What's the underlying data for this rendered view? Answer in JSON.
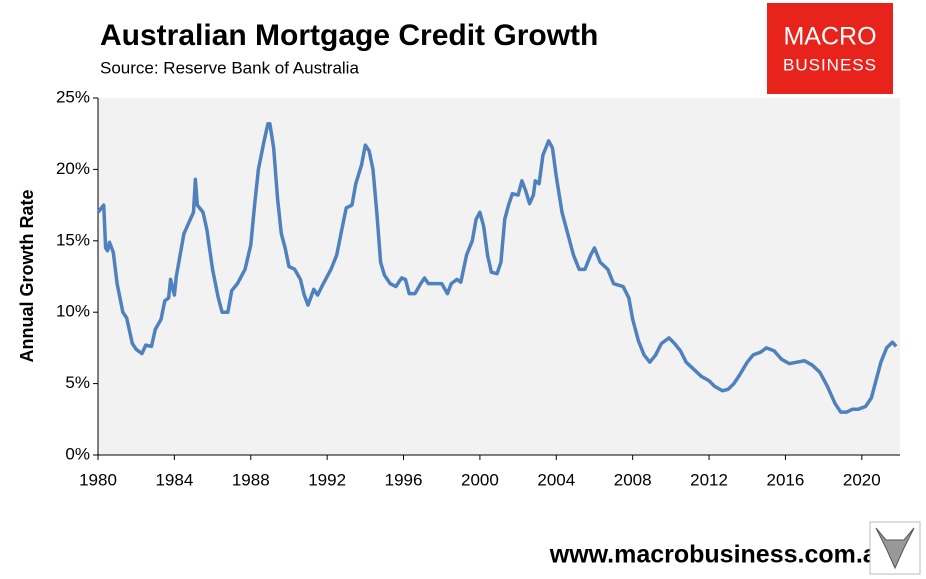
{
  "chart_data": {
    "type": "line",
    "title": "Australian Mortgage Credit Growth",
    "subtitle": "Source: Reserve Bank of Australia",
    "y_label": "Annual Growth Rate",
    "logo": [
      "MACRO",
      "BUSINESS"
    ],
    "footer": "www.macrobusiness.com.au",
    "xlim": [
      1980,
      2022
    ],
    "xticks": [
      1980,
      1984,
      1988,
      1992,
      1996,
      2000,
      2004,
      2008,
      2012,
      2016,
      2020
    ],
    "ylim": [
      0,
      25
    ],
    "yticks": [
      {
        "value": 0,
        "label": "0%"
      },
      {
        "value": 5,
        "label": "5%"
      },
      {
        "value": 10,
        "label": "10%"
      },
      {
        "value": 15,
        "label": "15%"
      },
      {
        "value": 20,
        "label": "20%"
      },
      {
        "value": 25,
        "label": "25%"
      }
    ],
    "grid": false,
    "x": [
      1980.0,
      1980.3,
      1980.4,
      1980.5,
      1980.6,
      1980.8,
      1981.0,
      1981.3,
      1981.5,
      1981.8,
      1982.0,
      1982.3,
      1982.5,
      1982.8,
      1983.0,
      1983.3,
      1983.5,
      1983.7,
      1983.8,
      1984.0,
      1984.1,
      1984.3,
      1984.5,
      1984.8,
      1985.0,
      1985.1,
      1985.2,
      1985.5,
      1985.7,
      1986.0,
      1986.3,
      1986.5,
      1986.8,
      1987.0,
      1987.3,
      1987.7,
      1988.0,
      1988.2,
      1988.4,
      1988.7,
      1988.9,
      1989.0,
      1989.2,
      1989.4,
      1989.6,
      1989.8,
      1990.0,
      1990.3,
      1990.6,
      1990.8,
      1991.0,
      1991.3,
      1991.5,
      1991.8,
      1992.2,
      1992.5,
      1992.8,
      1993.0,
      1993.3,
      1993.5,
      1993.8,
      1994.0,
      1994.2,
      1994.4,
      1994.6,
      1994.8,
      1995.0,
      1995.3,
      1995.6,
      1995.9,
      1996.1,
      1996.3,
      1996.6,
      1996.9,
      1997.1,
      1997.3,
      1997.6,
      1998.0,
      1998.3,
      1998.5,
      1998.8,
      1999.0,
      1999.3,
      1999.6,
      1999.8,
      2000.0,
      2000.2,
      2000.4,
      2000.6,
      2000.9,
      2001.1,
      2001.3,
      2001.5,
      2001.7,
      2002.0,
      2002.2,
      2002.4,
      2002.6,
      2002.8,
      2002.9,
      2003.1,
      2003.3,
      2003.6,
      2003.8,
      2004.0,
      2004.3,
      2004.6,
      2004.9,
      2005.2,
      2005.5,
      2005.8,
      2006.0,
      2006.3,
      2006.7,
      2007.0,
      2007.5,
      2007.8,
      2008.0,
      2008.3,
      2008.6,
      2008.9,
      2009.2,
      2009.5,
      2009.9,
      2010.2,
      2010.5,
      2010.8,
      2011.2,
      2011.6,
      2012.0,
      2012.3,
      2012.7,
      2013.0,
      2013.3,
      2013.6,
      2014.0,
      2014.3,
      2014.7,
      2015.0,
      2015.4,
      2015.8,
      2016.2,
      2016.6,
      2017.0,
      2017.4,
      2017.8,
      2018.2,
      2018.6,
      2018.9,
      2019.2,
      2019.5,
      2019.8,
      2020.2,
      2020.5,
      2020.8,
      2021.0,
      2021.3,
      2021.6,
      2021.8
    ],
    "series": [
      {
        "name": "Annual Growth Rate",
        "color": "#4f81bd",
        "values": [
          17.0,
          17.5,
          14.5,
          14.3,
          14.9,
          14.2,
          12.0,
          10.0,
          9.6,
          7.8,
          7.4,
          7.1,
          7.7,
          7.6,
          8.8,
          9.5,
          10.8,
          11.0,
          12.3,
          11.2,
          12.5,
          14.0,
          15.5,
          16.4,
          17.0,
          19.3,
          17.5,
          17.0,
          15.8,
          13.0,
          11.0,
          10.0,
          10.0,
          11.5,
          12.0,
          13.0,
          14.7,
          17.5,
          20.0,
          22.0,
          23.2,
          23.2,
          21.5,
          18.0,
          15.5,
          14.5,
          13.2,
          13.0,
          12.3,
          11.2,
          10.5,
          11.6,
          11.2,
          12.0,
          13.0,
          14.0,
          16.0,
          17.3,
          17.5,
          19.0,
          20.3,
          21.7,
          21.3,
          20.0,
          17.0,
          13.5,
          12.6,
          12.0,
          11.8,
          12.4,
          12.3,
          11.3,
          11.3,
          12.0,
          12.4,
          12.0,
          12.0,
          12.0,
          11.3,
          12.0,
          12.3,
          12.1,
          14.0,
          15.0,
          16.5,
          17.0,
          16.0,
          14.0,
          12.8,
          12.7,
          13.5,
          16.5,
          17.5,
          18.3,
          18.2,
          19.2,
          18.5,
          17.6,
          18.2,
          19.2,
          19.0,
          21.0,
          22.0,
          21.5,
          19.5,
          17.0,
          15.5,
          14.0,
          13.0,
          13.0,
          14.0,
          14.5,
          13.5,
          13.0,
          12.0,
          11.8,
          11.0,
          9.5,
          8.0,
          7.0,
          6.5,
          7.0,
          7.8,
          8.2,
          7.8,
          7.3,
          6.5,
          6.0,
          5.5,
          5.2,
          4.8,
          4.5,
          4.6,
          5.0,
          5.6,
          6.5,
          7.0,
          7.2,
          7.5,
          7.3,
          6.7,
          6.4,
          6.5,
          6.6,
          6.3,
          5.8,
          4.8,
          3.6,
          3.0,
          3.0,
          3.2,
          3.2,
          3.4,
          4.0,
          5.5,
          6.5,
          7.5,
          7.9,
          7.6
        ]
      }
    ]
  }
}
